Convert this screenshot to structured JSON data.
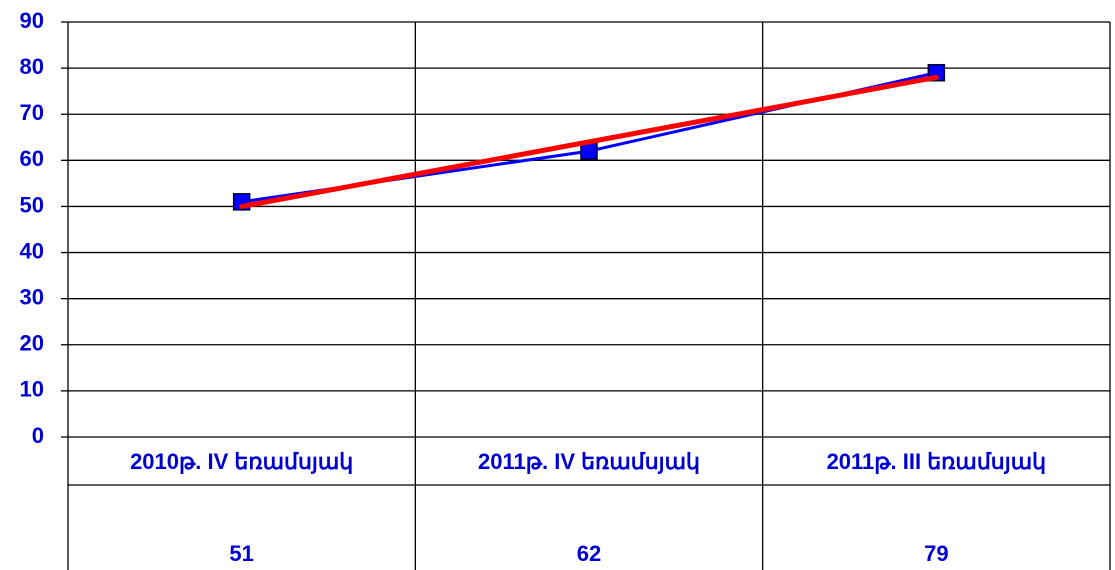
{
  "chart_data": {
    "type": "line",
    "categories": [
      "2010թ. IV եռամսյակ",
      "2011թ. IV եռամսյակ",
      "2011թ. III եռամսյակ"
    ],
    "series": [
      {
        "color": "#0000ff",
        "values": [
          51,
          62,
          79
        ],
        "marker": "square"
      },
      {
        "color": "#ff0000",
        "values": [
          50,
          64,
          78
        ]
      }
    ],
    "ylim": [
      0,
      90
    ],
    "yticks": [
      0,
      10,
      20,
      30,
      40,
      50,
      60,
      70,
      80,
      90
    ],
    "grid": true,
    "data_table": true
  }
}
